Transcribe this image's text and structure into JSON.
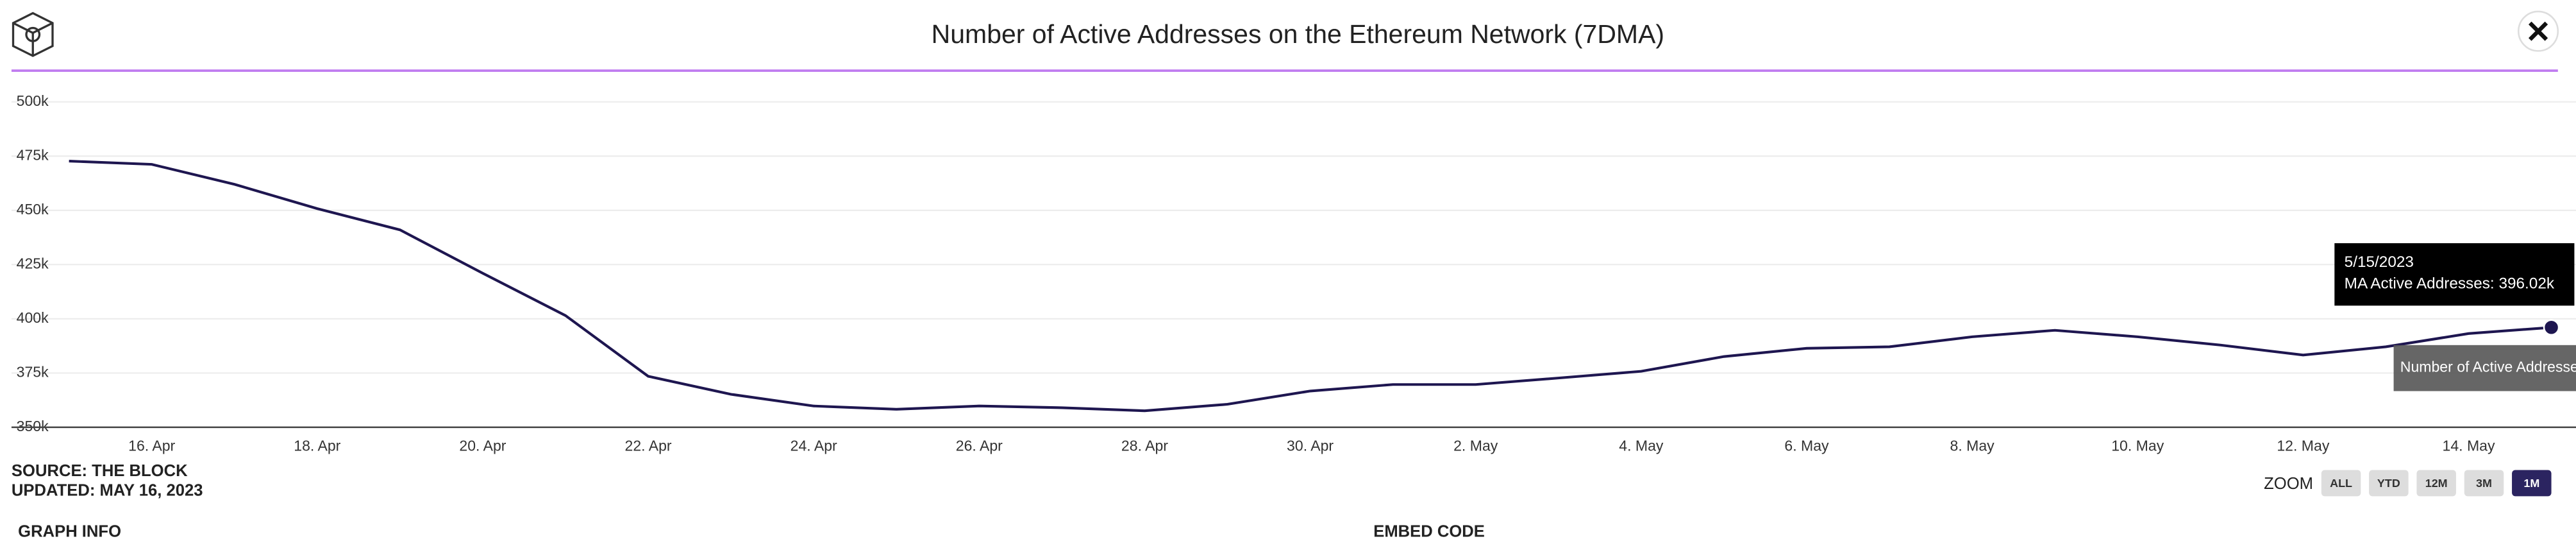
{
  "chart_data": {
    "type": "line",
    "title": "Number of Active Addresses on the Ethereum Network (7DMA)",
    "categories": [
      null,
      "16. Apr",
      null,
      "18. Apr",
      null,
      "20. Apr",
      null,
      "22. Apr",
      null,
      "24. Apr",
      null,
      "26. Apr",
      null,
      "28. Apr",
      null,
      "30. Apr",
      null,
      "2. May",
      null,
      "4. May",
      null,
      "6. May",
      null,
      "8. May",
      null,
      "10. May",
      null,
      "12. May",
      null,
      "14. May",
      null
    ],
    "series": [
      {
        "name": "Number of Active Addresses on the Ethereum Network (7DMA)",
        "color": "#1e1650",
        "values": [
          472700,
          471200,
          462000,
          450800,
          441000,
          421000,
          401500,
          373500,
          365200,
          359800,
          358300,
          359800,
          359000,
          357600,
          360600,
          366700,
          369700,
          369700,
          372700,
          375800,
          382600,
          386400,
          387100,
          391700,
          394700,
          391700,
          387900,
          383300,
          387100,
          393200,
          396020
        ]
      }
    ],
    "ylim": [
      350000,
      500000
    ],
    "yticks": [
      {
        "value": 350000,
        "label": "350k"
      },
      {
        "value": 375000,
        "label": "375k"
      },
      {
        "value": 400000,
        "label": "400k"
      },
      {
        "value": 425000,
        "label": "425k"
      },
      {
        "value": 450000,
        "label": "450k"
      },
      {
        "value": 475000,
        "label": "475k"
      },
      {
        "value": 500000,
        "label": "500k"
      }
    ],
    "grid": true,
    "tooltip": {
      "date": "5/15/2023",
      "label": "MA Active Addresses: 396.02k"
    }
  },
  "footer": {
    "source": "SOURCE: THE BLOCK",
    "updated": "UPDATED: MAY 16, 2023",
    "zoom": "ZOOM",
    "buttons": [
      "ALL",
      "YTD",
      "12M",
      "3M",
      "1M"
    ],
    "graph_info": "GRAPH INFO",
    "embed_code": "EMBED CODE"
  }
}
